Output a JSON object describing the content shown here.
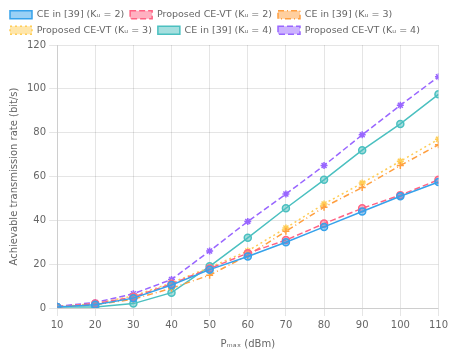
{
  "chart_data": {
    "type": "line",
    "x": [
      10,
      20,
      30,
      40,
      50,
      60,
      70,
      80,
      90,
      100,
      110
    ],
    "series": [
      {
        "name": "CE in [39] (Kᵤ = 2)",
        "values": [
          0.5,
          1.5,
          4.5,
          10.5,
          17.5,
          23.5,
          30.0,
          37.0,
          44.0,
          51.0,
          57.5
        ],
        "line_style": "solid",
        "marker": "circle"
      },
      {
        "name": "Proposed CE-VT (Kᵤ = 2)",
        "values": [
          0.5,
          2.0,
          5.0,
          11.0,
          18.0,
          25.0,
          31.0,
          38.5,
          45.5,
          51.5,
          58.5
        ],
        "line_style": "dashed",
        "marker": "circle"
      },
      {
        "name": "CE in [39] (Kᵤ = 3)",
        "values": [
          0.5,
          1.5,
          4.0,
          9.0,
          15.0,
          24.0,
          35.0,
          46.0,
          55.0,
          65.0,
          74.5
        ],
        "line_style": "dashdot",
        "marker": "plus"
      },
      {
        "name": "Proposed CE-VT (Kᵤ = 3)",
        "values": [
          0.5,
          2.0,
          5.5,
          11.5,
          18.5,
          26.0,
          36.5,
          47.5,
          57.0,
          67.0,
          77.0
        ],
        "line_style": "dotted",
        "marker": "star"
      },
      {
        "name": "CE in [39] (Kᵤ = 4)",
        "values": [
          0.5,
          0.5,
          2.0,
          7.0,
          19.0,
          32.0,
          45.5,
          58.5,
          72.0,
          84.0,
          97.5
        ],
        "line_style": "solid",
        "marker": "circle"
      },
      {
        "name": "Proposed CE-VT (Kᵤ = 4)",
        "values": [
          0.8,
          2.5,
          6.5,
          13.0,
          26.0,
          39.5,
          52.0,
          65.0,
          79.0,
          92.5,
          105.5
        ],
        "line_style": "dashed",
        "marker": "star"
      }
    ],
    "xlabel": "Pₘₐₓ (dBm)",
    "ylabel": "Achievable transmission rate (bit/s)",
    "xlim": [
      10,
      110
    ],
    "ylim": [
      0,
      120
    ],
    "xticks": [
      10,
      20,
      30,
      40,
      50,
      60,
      70,
      80,
      90,
      100,
      110
    ],
    "yticks": [
      0,
      20,
      40,
      60,
      80,
      100,
      120
    ],
    "grid": true,
    "legend": "upper left"
  }
}
